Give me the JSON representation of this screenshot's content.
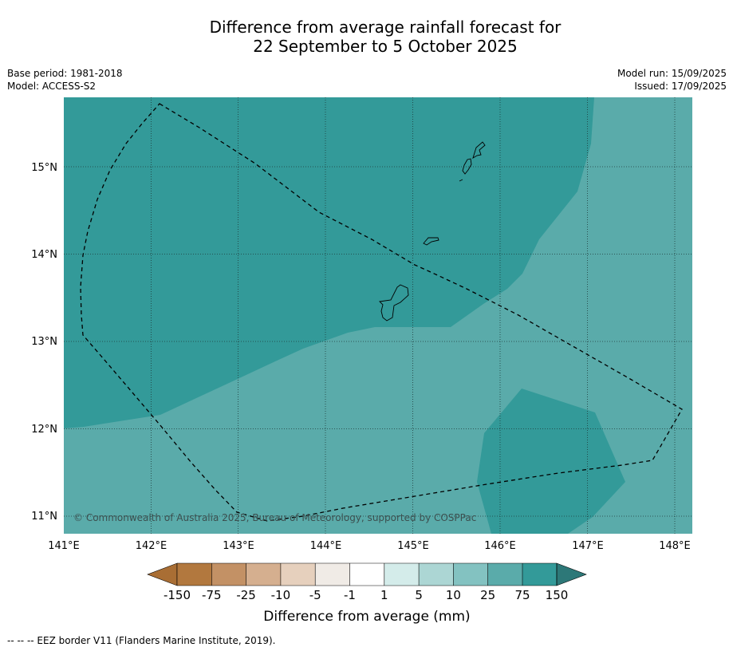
{
  "title_line1": "Difference from average rainfall forecast for",
  "title_line2": "22 September to 5 October 2025",
  "base_period": "Base period: 1981-2018",
  "model": "Model: ACCESS-S2",
  "model_run": "Model run: 15/09/2025",
  "issued": "Issued: 17/09/2025",
  "map": {
    "lon_range": [
      141,
      148.2
    ],
    "lat_range": [
      10.8,
      15.8
    ],
    "lon_ticks": [
      "141°E",
      "142°E",
      "143°E",
      "144°E",
      "145°E",
      "146°E",
      "147°E",
      "148°E"
    ],
    "lat_ticks": [
      "15°N",
      "14°N",
      "13°N",
      "12°N",
      "11°N"
    ],
    "copyright": "© Commonwealth of Australia 2025, Bureau of Meteorology, supported by COSPPac",
    "regions": [
      {
        "category": "75 to 150",
        "color": "#339a99"
      },
      {
        "category": "25 to 75",
        "color": "#5aabaa"
      }
    ]
  },
  "colorbar": {
    "title": "Difference from average (mm)",
    "tick_labels": [
      "-150",
      "-75",
      "-25",
      "-10",
      "-5",
      "-1",
      "1",
      "5",
      "10",
      "25",
      "75",
      "150"
    ],
    "colors": [
      "#a96e34",
      "#b2783e",
      "#c39165",
      "#d5af8f",
      "#e6d0bd",
      "#f0ebe6",
      "#ffffff",
      "#d4ecea",
      "#acd6d4",
      "#83c2c1",
      "#5aabaa",
      "#339a99",
      "#2d7878"
    ]
  },
  "footnote": "--  --  -- EEZ border V11 (Flanders Marine Institute, 2019)."
}
